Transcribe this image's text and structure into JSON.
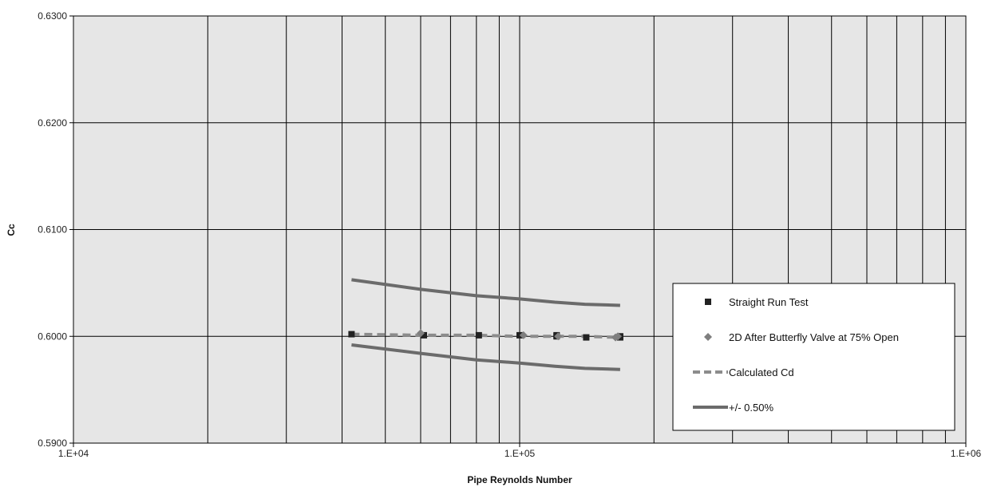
{
  "chart_data": {
    "type": "scatter",
    "title": "",
    "xlabel": "Pipe Reynolds Number",
    "ylabel": "Cc",
    "x_scale": "log",
    "xlim": [
      10000,
      1000000
    ],
    "ylim": [
      0.59,
      0.63
    ],
    "x_ticks": [
      "1.E+04",
      "1.E+05",
      "1.E+06"
    ],
    "y_ticks": [
      "0.5900",
      "0.6000",
      "0.6100",
      "0.6200",
      "0.6300"
    ],
    "grid": true,
    "legend_position": "right",
    "series": [
      {
        "name": "Straight Run Test",
        "kind": "marker-square",
        "color": "#222222",
        "points": [
          [
            42000,
            0.6002
          ],
          [
            61000,
            0.6001
          ],
          [
            81000,
            0.6001
          ],
          [
            100000,
            0.6001
          ],
          [
            121000,
            0.6001
          ],
          [
            121000,
            0.6
          ],
          [
            141000,
            0.5999
          ],
          [
            168000,
            0.6
          ],
          [
            168000,
            0.5999
          ]
        ]
      },
      {
        "name": "2D After Butterfly Valve at 75% Open",
        "kind": "marker-diamond",
        "color": "#7f7f7f",
        "points": [
          [
            60000,
            0.6003
          ],
          [
            102000,
            0.6001
          ],
          [
            122000,
            0.6
          ],
          [
            164000,
            0.5999
          ],
          [
            166000,
            0.6
          ]
        ]
      },
      {
        "name": "Calculated Cd",
        "kind": "line-dashed",
        "color": "#8c8c8c",
        "points": [
          [
            42000,
            0.6002
          ],
          [
            60000,
            0.6001
          ],
          [
            80000,
            0.6001
          ],
          [
            100000,
            0.6
          ],
          [
            120000,
            0.6
          ],
          [
            140000,
            0.6
          ],
          [
            168000,
            0.5999
          ]
        ]
      },
      {
        "name": "+/- 0.50%",
        "kind": "line-solid",
        "color": "#6b6b6b",
        "points": [
          [
            42000,
            0.6053
          ],
          [
            60000,
            0.6044
          ],
          [
            80000,
            0.6038
          ],
          [
            100000,
            0.6035
          ],
          [
            120000,
            0.6032
          ],
          [
            140000,
            0.603
          ],
          [
            168000,
            0.6029
          ]
        ]
      },
      {
        "name": "",
        "kind": "line-solid",
        "color": "#6b6b6b",
        "points": [
          [
            42000,
            0.5992
          ],
          [
            60000,
            0.5984
          ],
          [
            80000,
            0.5978
          ],
          [
            100000,
            0.5975
          ],
          [
            120000,
            0.5972
          ],
          [
            140000,
            0.597
          ],
          [
            168000,
            0.5969
          ]
        ]
      }
    ]
  },
  "colors": {
    "plot_background": "#e6e6e6",
    "grid": "#000000"
  }
}
